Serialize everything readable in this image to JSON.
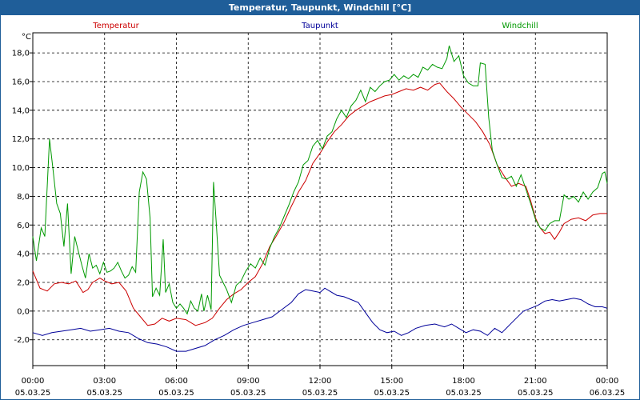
{
  "window": {
    "title": "Temperatur, Taupunkt, Windchill [°C]"
  },
  "chart_data": {
    "type": "line",
    "title": "Temperatur, Taupunkt, Windchill [°C]",
    "ylabel": "°C",
    "ylim": [
      -3.8,
      19.4
    ],
    "yticks": [
      -2,
      0,
      2,
      4,
      6,
      8,
      10,
      12,
      14,
      16,
      18
    ],
    "ytick_labels": [
      "-2,0",
      "0,0",
      "2,0",
      "4,0",
      "6,0",
      "8,0",
      "10,0",
      "12,0",
      "14,0",
      "16,0",
      "18,0"
    ],
    "xlim": [
      0,
      24
    ],
    "xticks": [
      0,
      3,
      6,
      9,
      12,
      15,
      18,
      21,
      24
    ],
    "xtick_time_labels": [
      "00:00",
      "03:00",
      "06:00",
      "09:00",
      "12:00",
      "15:00",
      "18:00",
      "21:00",
      "00:00"
    ],
    "xtick_date_labels": [
      "05.03.25",
      "05.03.25",
      "05.03.25",
      "05.03.25",
      "05.03.25",
      "05.03.25",
      "05.03.25",
      "05.03.25",
      "06.03.25"
    ],
    "grid": true,
    "legend_placement": "top",
    "series": [
      {
        "name": "Temperatur",
        "color": "#cc0000",
        "points": [
          [
            0,
            2.8
          ],
          [
            0.3,
            1.6
          ],
          [
            0.6,
            1.4
          ],
          [
            0.9,
            1.9
          ],
          [
            1.2,
            2.0
          ],
          [
            1.5,
            1.9
          ],
          [
            1.8,
            2.1
          ],
          [
            2.1,
            1.3
          ],
          [
            2.3,
            1.5
          ],
          [
            2.5,
            2.0
          ],
          [
            2.8,
            2.3
          ],
          [
            3.0,
            2.1
          ],
          [
            3.3,
            1.9
          ],
          [
            3.6,
            2.0
          ],
          [
            3.9,
            1.4
          ],
          [
            4.2,
            0.2
          ],
          [
            4.5,
            -0.4
          ],
          [
            4.8,
            -1.0
          ],
          [
            5.1,
            -0.9
          ],
          [
            5.4,
            -0.5
          ],
          [
            5.7,
            -0.7
          ],
          [
            6.0,
            -0.5
          ],
          [
            6.4,
            -0.6
          ],
          [
            6.8,
            -1.0
          ],
          [
            7.2,
            -0.8
          ],
          [
            7.5,
            -0.5
          ],
          [
            7.8,
            0.2
          ],
          [
            8.1,
            0.8
          ],
          [
            8.4,
            1.2
          ],
          [
            8.7,
            1.5
          ],
          [
            9.0,
            2.0
          ],
          [
            9.3,
            2.4
          ],
          [
            9.6,
            3.3
          ],
          [
            9.9,
            4.5
          ],
          [
            10.2,
            5.3
          ],
          [
            10.5,
            6.2
          ],
          [
            10.8,
            7.3
          ],
          [
            11.1,
            8.3
          ],
          [
            11.4,
            9.1
          ],
          [
            11.7,
            10.3
          ],
          [
            12.0,
            11.0
          ],
          [
            12.3,
            11.8
          ],
          [
            12.6,
            12.5
          ],
          [
            12.9,
            13.0
          ],
          [
            13.2,
            13.6
          ],
          [
            13.5,
            14.0
          ],
          [
            13.8,
            14.3
          ],
          [
            14.1,
            14.6
          ],
          [
            14.4,
            14.8
          ],
          [
            14.7,
            15.0
          ],
          [
            15.0,
            15.1
          ],
          [
            15.3,
            15.3
          ],
          [
            15.6,
            15.5
          ],
          [
            15.9,
            15.4
          ],
          [
            16.2,
            15.6
          ],
          [
            16.5,
            15.4
          ],
          [
            16.8,
            15.8
          ],
          [
            17.0,
            15.9
          ],
          [
            17.3,
            15.3
          ],
          [
            17.6,
            14.8
          ],
          [
            17.9,
            14.2
          ],
          [
            18.2,
            13.7
          ],
          [
            18.5,
            13.2
          ],
          [
            18.8,
            12.5
          ],
          [
            19.1,
            11.6
          ],
          [
            19.4,
            10.2
          ],
          [
            19.7,
            9.4
          ],
          [
            20.0,
            8.7
          ],
          [
            20.3,
            8.9
          ],
          [
            20.6,
            8.7
          ],
          [
            20.8,
            7.7
          ],
          [
            21.0,
            6.5
          ],
          [
            21.2,
            5.8
          ],
          [
            21.4,
            5.4
          ],
          [
            21.6,
            5.5
          ],
          [
            21.8,
            5.0
          ],
          [
            22.0,
            5.5
          ],
          [
            22.2,
            6.1
          ],
          [
            22.5,
            6.4
          ],
          [
            22.8,
            6.5
          ],
          [
            23.1,
            6.3
          ],
          [
            23.4,
            6.7
          ],
          [
            23.7,
            6.8
          ],
          [
            24.0,
            6.8
          ]
        ]
      },
      {
        "name": "Taupunkt",
        "color": "#000099",
        "points": [
          [
            0,
            -1.5
          ],
          [
            0.4,
            -1.7
          ],
          [
            0.8,
            -1.5
          ],
          [
            1.2,
            -1.4
          ],
          [
            1.6,
            -1.3
          ],
          [
            2.0,
            -1.2
          ],
          [
            2.4,
            -1.4
          ],
          [
            2.8,
            -1.3
          ],
          [
            3.2,
            -1.2
          ],
          [
            3.6,
            -1.4
          ],
          [
            4.0,
            -1.5
          ],
          [
            4.4,
            -1.9
          ],
          [
            4.8,
            -2.2
          ],
          [
            5.2,
            -2.3
          ],
          [
            5.6,
            -2.5
          ],
          [
            6.0,
            -2.8
          ],
          [
            6.4,
            -2.8
          ],
          [
            6.8,
            -2.6
          ],
          [
            7.2,
            -2.4
          ],
          [
            7.6,
            -2.0
          ],
          [
            8.0,
            -1.7
          ],
          [
            8.4,
            -1.3
          ],
          [
            8.8,
            -1.0
          ],
          [
            9.2,
            -0.8
          ],
          [
            9.6,
            -0.6
          ],
          [
            10.0,
            -0.4
          ],
          [
            10.4,
            0.1
          ],
          [
            10.8,
            0.6
          ],
          [
            11.1,
            1.2
          ],
          [
            11.4,
            1.5
          ],
          [
            11.7,
            1.4
          ],
          [
            12.0,
            1.3
          ],
          [
            12.2,
            1.6
          ],
          [
            12.4,
            1.4
          ],
          [
            12.7,
            1.1
          ],
          [
            13.0,
            1.0
          ],
          [
            13.3,
            0.8
          ],
          [
            13.6,
            0.6
          ],
          [
            13.9,
            -0.1
          ],
          [
            14.2,
            -0.8
          ],
          [
            14.5,
            -1.3
          ],
          [
            14.8,
            -1.5
          ],
          [
            15.1,
            -1.4
          ],
          [
            15.4,
            -1.7
          ],
          [
            15.7,
            -1.5
          ],
          [
            16.0,
            -1.2
          ],
          [
            16.4,
            -1.0
          ],
          [
            16.8,
            -0.9
          ],
          [
            17.2,
            -1.1
          ],
          [
            17.5,
            -0.9
          ],
          [
            17.8,
            -1.2
          ],
          [
            18.1,
            -1.5
          ],
          [
            18.4,
            -1.3
          ],
          [
            18.7,
            -1.4
          ],
          [
            19.0,
            -1.7
          ],
          [
            19.3,
            -1.2
          ],
          [
            19.6,
            -1.5
          ],
          [
            19.9,
            -1.0
          ],
          [
            20.2,
            -0.5
          ],
          [
            20.5,
            0.0
          ],
          [
            20.8,
            0.2
          ],
          [
            21.1,
            0.4
          ],
          [
            21.4,
            0.7
          ],
          [
            21.7,
            0.8
          ],
          [
            22.0,
            0.7
          ],
          [
            22.3,
            0.8
          ],
          [
            22.6,
            0.9
          ],
          [
            22.9,
            0.8
          ],
          [
            23.2,
            0.5
          ],
          [
            23.5,
            0.3
          ],
          [
            23.8,
            0.3
          ],
          [
            24.0,
            0.2
          ]
        ]
      },
      {
        "name": "Windchill",
        "color": "#009900",
        "points": [
          [
            0,
            5.2
          ],
          [
            0.15,
            3.5
          ],
          [
            0.35,
            5.8
          ],
          [
            0.5,
            5.2
          ],
          [
            0.7,
            12.0
          ],
          [
            0.85,
            9.8
          ],
          [
            1.0,
            7.5
          ],
          [
            1.15,
            6.8
          ],
          [
            1.3,
            4.5
          ],
          [
            1.45,
            7.5
          ],
          [
            1.6,
            2.6
          ],
          [
            1.75,
            5.2
          ],
          [
            1.9,
            4.2
          ],
          [
            2.05,
            3.2
          ],
          [
            2.2,
            2.3
          ],
          [
            2.35,
            4.0
          ],
          [
            2.5,
            3.0
          ],
          [
            2.65,
            3.2
          ],
          [
            2.8,
            2.6
          ],
          [
            2.95,
            3.4
          ],
          [
            3.1,
            2.7
          ],
          [
            3.25,
            2.8
          ],
          [
            3.4,
            3.0
          ],
          [
            3.55,
            3.4
          ],
          [
            3.7,
            2.8
          ],
          [
            3.85,
            2.3
          ],
          [
            4.0,
            2.5
          ],
          [
            4.15,
            3.1
          ],
          [
            4.3,
            2.7
          ],
          [
            4.45,
            8.3
          ],
          [
            4.6,
            9.7
          ],
          [
            4.75,
            9.2
          ],
          [
            4.9,
            6.5
          ],
          [
            5.0,
            1.0
          ],
          [
            5.15,
            1.6
          ],
          [
            5.3,
            1.1
          ],
          [
            5.45,
            5.0
          ],
          [
            5.55,
            1.3
          ],
          [
            5.7,
            1.9
          ],
          [
            5.85,
            0.6
          ],
          [
            6.0,
            0.2
          ],
          [
            6.15,
            0.5
          ],
          [
            6.3,
            0.2
          ],
          [
            6.45,
            -0.2
          ],
          [
            6.6,
            0.7
          ],
          [
            6.75,
            0.2
          ],
          [
            6.9,
            0.0
          ],
          [
            7.05,
            1.2
          ],
          [
            7.15,
            0.0
          ],
          [
            7.3,
            1.1
          ],
          [
            7.45,
            0.1
          ],
          [
            7.55,
            9.0
          ],
          [
            7.65,
            6.5
          ],
          [
            7.8,
            2.5
          ],
          [
            7.95,
            2.0
          ],
          [
            8.1,
            1.5
          ],
          [
            8.3,
            0.6
          ],
          [
            8.5,
            1.8
          ],
          [
            8.7,
            2.1
          ],
          [
            8.9,
            2.8
          ],
          [
            9.1,
            3.3
          ],
          [
            9.3,
            3.0
          ],
          [
            9.5,
            3.7
          ],
          [
            9.7,
            3.2
          ],
          [
            9.9,
            4.4
          ],
          [
            10.1,
            5.2
          ],
          [
            10.3,
            5.8
          ],
          [
            10.5,
            6.6
          ],
          [
            10.7,
            7.4
          ],
          [
            10.9,
            8.3
          ],
          [
            11.1,
            9.0
          ],
          [
            11.3,
            10.2
          ],
          [
            11.5,
            10.5
          ],
          [
            11.7,
            11.5
          ],
          [
            11.9,
            11.9
          ],
          [
            12.1,
            11.3
          ],
          [
            12.3,
            12.2
          ],
          [
            12.5,
            12.5
          ],
          [
            12.7,
            13.4
          ],
          [
            12.9,
            14.0
          ],
          [
            13.1,
            13.5
          ],
          [
            13.3,
            14.3
          ],
          [
            13.5,
            14.7
          ],
          [
            13.7,
            15.4
          ],
          [
            13.9,
            14.6
          ],
          [
            14.1,
            15.6
          ],
          [
            14.3,
            15.3
          ],
          [
            14.5,
            15.7
          ],
          [
            14.7,
            16.0
          ],
          [
            14.9,
            16.1
          ],
          [
            15.1,
            16.5
          ],
          [
            15.3,
            16.1
          ],
          [
            15.5,
            16.4
          ],
          [
            15.7,
            16.2
          ],
          [
            15.9,
            16.5
          ],
          [
            16.1,
            16.3
          ],
          [
            16.3,
            17.0
          ],
          [
            16.5,
            16.8
          ],
          [
            16.7,
            17.2
          ],
          [
            16.9,
            17.0
          ],
          [
            17.1,
            16.9
          ],
          [
            17.3,
            17.6
          ],
          [
            17.4,
            18.5
          ],
          [
            17.6,
            17.4
          ],
          [
            17.8,
            17.8
          ],
          [
            18.0,
            16.4
          ],
          [
            18.2,
            15.9
          ],
          [
            18.4,
            15.7
          ],
          [
            18.6,
            15.7
          ],
          [
            18.7,
            17.3
          ],
          [
            18.9,
            17.2
          ],
          [
            19.05,
            13.5
          ],
          [
            19.2,
            11.2
          ],
          [
            19.4,
            10.2
          ],
          [
            19.6,
            9.3
          ],
          [
            19.8,
            9.2
          ],
          [
            20.0,
            9.4
          ],
          [
            20.2,
            8.7
          ],
          [
            20.4,
            9.5
          ],
          [
            20.6,
            8.5
          ],
          [
            20.8,
            7.5
          ],
          [
            21.0,
            6.4
          ],
          [
            21.2,
            5.8
          ],
          [
            21.4,
            5.6
          ],
          [
            21.6,
            6.1
          ],
          [
            21.8,
            6.3
          ],
          [
            22.0,
            6.3
          ],
          [
            22.2,
            8.1
          ],
          [
            22.4,
            7.8
          ],
          [
            22.6,
            8.0
          ],
          [
            22.8,
            7.6
          ],
          [
            23.0,
            8.3
          ],
          [
            23.2,
            7.8
          ],
          [
            23.4,
            8.3
          ],
          [
            23.6,
            8.6
          ],
          [
            23.8,
            9.6
          ],
          [
            23.9,
            9.7
          ],
          [
            24.0,
            8.9
          ]
        ]
      }
    ]
  }
}
